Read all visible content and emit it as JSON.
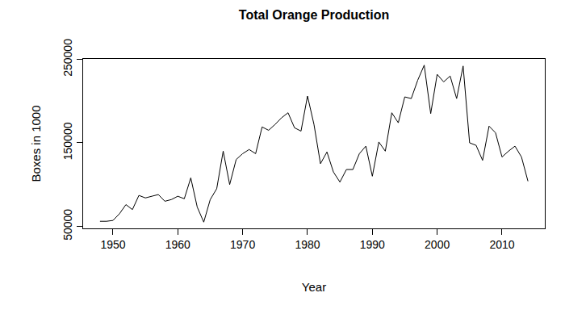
{
  "chart_data": {
    "type": "line",
    "title": "Total Orange Production",
    "x_label": "Year",
    "y_label": "Boxes in 1000",
    "x": [
      1948,
      1949,
      1950,
      1951,
      1952,
      1953,
      1954,
      1955,
      1956,
      1957,
      1958,
      1959,
      1960,
      1961,
      1962,
      1963,
      1964,
      1965,
      1966,
      1967,
      1968,
      1969,
      1970,
      1971,
      1972,
      1973,
      1974,
      1975,
      1976,
      1977,
      1978,
      1979,
      1980,
      1981,
      1982,
      1983,
      1984,
      1985,
      1986,
      1987,
      1988,
      1989,
      1990,
      1991,
      1992,
      1993,
      1994,
      1995,
      1996,
      1997,
      1998,
      1999,
      2000,
      2001,
      2002,
      2003,
      2004,
      2005,
      2006,
      2007,
      2008,
      2009,
      2010,
      2011,
      2012,
      2013,
      2014
    ],
    "values": [
      56000,
      56000,
      57000,
      65000,
      76000,
      70000,
      87000,
      84000,
      86000,
      88000,
      80000,
      82000,
      86000,
      83000,
      108000,
      73000,
      55000,
      82000,
      95000,
      140000,
      100000,
      130000,
      137000,
      142000,
      137000,
      169000,
      165000,
      172000,
      180000,
      186000,
      168000,
      164000,
      206000,
      172000,
      125000,
      139000,
      115000,
      103000,
      118000,
      118000,
      137000,
      146000,
      110000,
      151000,
      140000,
      186000,
      174000,
      205000,
      203000,
      225000,
      243000,
      185000,
      232000,
      223000,
      230000,
      203000,
      242000,
      150000,
      147000,
      129000,
      170000,
      162000,
      133000,
      140000,
      146000,
      133000,
      104000
    ],
    "color": "#000000",
    "xlim": [
      1945.4,
      2016.6
    ],
    "xticks": [
      1950,
      1960,
      1970,
      1980,
      1990,
      2000,
      2010
    ],
    "ylim": [
      47500,
      250500
    ],
    "yticks": [
      50000,
      150000,
      250000
    ],
    "grid": false
  }
}
